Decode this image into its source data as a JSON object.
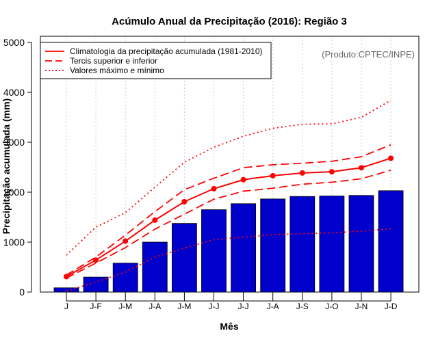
{
  "chart_data": {
    "type": "bar",
    "title": "Acúmulo Anual da Precipitação (2016): Região 3",
    "xlabel": "Mês",
    "ylabel": "Precipitação acumulada (mm)",
    "ylim": [
      0,
      5000
    ],
    "yticks": [
      0,
      1000,
      2000,
      3000,
      4000,
      5000
    ],
    "grid": true,
    "credit": "(Produto:CPTEC/INPE)",
    "categories": [
      "J",
      "J-F",
      "J-M",
      "J-A",
      "J-M",
      "J-J",
      "J-J",
      "J-A",
      "J-S",
      "J-O",
      "J-N",
      "J-D"
    ],
    "values": [
      85,
      300,
      580,
      1000,
      1375,
      1650,
      1770,
      1865,
      1915,
      1925,
      1935,
      2030
    ],
    "series": [
      {
        "name": "Climatologia da precipitação acumulada (1981-2010)",
        "style": "solid",
        "markers": true,
        "values": [
          310,
          640,
          1020,
          1440,
          1810,
          2070,
          2250,
          2330,
          2385,
          2410,
          2490,
          2680
        ]
      },
      {
        "name": "Tercis superior e inferior",
        "style": "dashed",
        "part": "upper",
        "values": [
          340,
          700,
          1140,
          1610,
          2050,
          2280,
          2490,
          2550,
          2580,
          2620,
          2710,
          2950
        ]
      },
      {
        "name": "Tercis superior e inferior",
        "style": "dashed",
        "part": "lower",
        "values": [
          280,
          580,
          890,
          1260,
          1560,
          1860,
          2020,
          2080,
          2160,
          2200,
          2270,
          2440
        ]
      },
      {
        "name": "Valores máximo e mínimo",
        "style": "dotted",
        "part": "max",
        "values": [
          740,
          1300,
          1590,
          2100,
          2600,
          2900,
          3120,
          3280,
          3360,
          3370,
          3500,
          3840
        ]
      },
      {
        "name": "Valores máximo e mínimo",
        "style": "dotted",
        "part": "min",
        "values": [
          20,
          200,
          400,
          700,
          880,
          1050,
          1100,
          1150,
          1170,
          1185,
          1220,
          1270
        ]
      }
    ],
    "legend": {
      "placement": "top-left",
      "entries": [
        {
          "label": "Climatologia da precipitação acumulada (1981-2010)",
          "style": "solid"
        },
        {
          "label": "Tercis superior e inferior",
          "style": "dashed"
        },
        {
          "label": "Valores máximo e mínimo",
          "style": "dotted"
        }
      ]
    },
    "colors": {
      "bar": "#0000cc",
      "line": "#ff0000",
      "grid": "#cccccc",
      "axis": "#000000"
    }
  }
}
